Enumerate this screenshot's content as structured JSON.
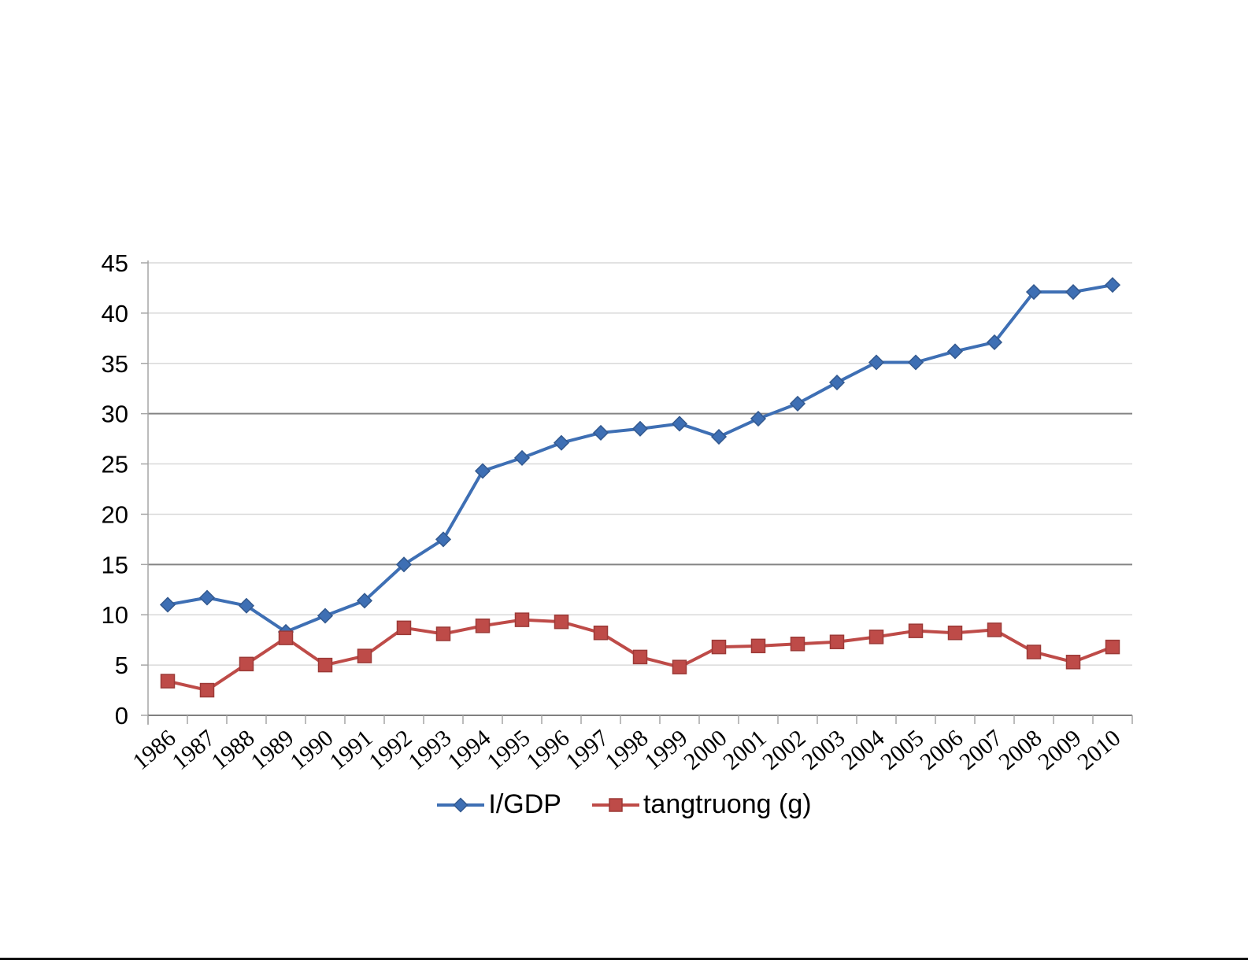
{
  "page": {
    "background": "#FFFFFF",
    "bottom_rule_color": "#141414"
  },
  "chart_data": {
    "type": "line",
    "title": "",
    "xlabel": "",
    "ylabel": "",
    "categories": [
      "1986",
      "1987",
      "1988",
      "1989",
      "1990",
      "1991",
      "1992",
      "1993",
      "1994",
      "1995",
      "1996",
      "1997",
      "1998",
      "1999",
      "2000",
      "2001",
      "2002",
      "2003",
      "2004",
      "2005",
      "2006",
      "2007",
      "2008",
      "2009",
      "2010"
    ],
    "series": [
      {
        "name": "I/GDP",
        "marker": "diamond",
        "color": "#3E6FB4",
        "marker_border": "#33598F",
        "values": [
          11.0,
          11.7,
          10.9,
          8.3,
          9.9,
          11.4,
          15.0,
          17.5,
          24.3,
          25.6,
          27.1,
          28.1,
          28.5,
          29.0,
          27.7,
          29.5,
          31.0,
          33.1,
          35.1,
          35.1,
          36.2,
          37.1,
          42.1,
          42.1,
          42.8
        ]
      },
      {
        "name": "tangtruong (g)",
        "marker": "square",
        "color": "#BE4B48",
        "marker_border": "#9C3A37",
        "values": [
          3.4,
          2.5,
          5.1,
          7.7,
          5.0,
          5.9,
          8.7,
          8.1,
          8.9,
          9.5,
          9.3,
          8.2,
          5.8,
          4.8,
          6.8,
          6.9,
          7.1,
          7.3,
          7.8,
          8.4,
          8.2,
          8.5,
          6.3,
          5.3,
          6.8
        ]
      }
    ],
    "ylim": [
      0,
      45
    ],
    "ytick_step": 5,
    "ytick_labels": [
      "0",
      "5",
      "10",
      "15",
      "20",
      "25",
      "30",
      "35",
      "40",
      "45"
    ],
    "grid": {
      "show": true,
      "light_color": "#D9D9D9",
      "dark_color": "#848484",
      "dark_values": [
        15,
        30
      ]
    },
    "axis_color": "#A6A6A6",
    "x_axis_color": "#808080",
    "legend_position": "bottom-center"
  }
}
